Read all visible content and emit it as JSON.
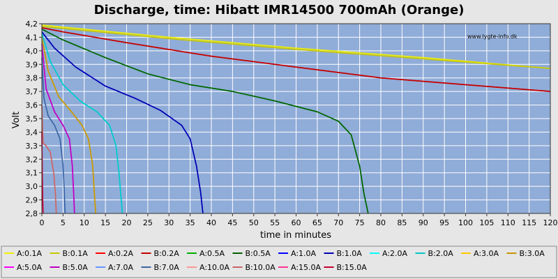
{
  "chart_data": {
    "type": "line",
    "title": "Discharge, time: Hibatt IMR14500 700mAh (Orange)",
    "watermark": "www.lygte-info.dk",
    "xlabel": "time in minutes",
    "ylabel": "Volt",
    "xlim": [
      0,
      120
    ],
    "ylim": [
      2.8,
      4.2
    ],
    "xticks": [
      "0",
      "5",
      "10",
      "15",
      "20",
      "25",
      "30",
      "35",
      "40",
      "45",
      "50",
      "55",
      "60",
      "65",
      "70",
      "75",
      "80",
      "85",
      "90",
      "95",
      "100",
      "105",
      "110",
      "115",
      "120"
    ],
    "yticks": [
      "2,8",
      "2,9",
      "3,0",
      "3,1",
      "3,2",
      "3,3",
      "3,4",
      "3,5",
      "3,6",
      "3,7",
      "3,8",
      "3,9",
      "4,0",
      "4,1",
      "4,2"
    ],
    "grid": true,
    "legend_position": "bottom",
    "plot_background": "#90acd8",
    "series": [
      {
        "name": "A:0.1A",
        "color": "#f0f000",
        "x": [
          0,
          10,
          30,
          60,
          90,
          120
        ],
        "y": [
          4.19,
          4.16,
          4.1,
          4.02,
          3.95,
          3.87
        ]
      },
      {
        "name": "B:0.1A",
        "color": "#c8c800",
        "x": [
          0,
          10,
          30,
          60,
          90,
          120
        ],
        "y": [
          4.18,
          4.15,
          4.09,
          4.01,
          3.94,
          3.87
        ]
      },
      {
        "name": "A:0.2A",
        "color": "#ff0000",
        "x": [
          0,
          5,
          20,
          40,
          60,
          80,
          100,
          120
        ],
        "y": [
          4.17,
          4.14,
          4.06,
          3.96,
          3.88,
          3.8,
          3.75,
          3.7
        ]
      },
      {
        "name": "B:0.2A",
        "color": "#c00000",
        "x": [
          0,
          5,
          20,
          40,
          60,
          80,
          100,
          120
        ],
        "y": [
          4.17,
          4.14,
          4.06,
          3.96,
          3.88,
          3.8,
          3.75,
          3.7
        ]
      },
      {
        "name": "A:0.5A",
        "color": "#00b000",
        "x": [
          0,
          5,
          15,
          25,
          35,
          45,
          55,
          65,
          70,
          73,
          75,
          76,
          77
        ],
        "y": [
          4.16,
          4.08,
          3.95,
          3.83,
          3.75,
          3.7,
          3.63,
          3.55,
          3.48,
          3.38,
          3.15,
          2.95,
          2.8
        ]
      },
      {
        "name": "B:0.5A",
        "color": "#006000",
        "x": [
          0,
          5,
          15,
          25,
          35,
          45,
          55,
          65,
          70,
          73,
          75,
          76,
          77
        ],
        "y": [
          4.16,
          4.08,
          3.95,
          3.83,
          3.75,
          3.7,
          3.63,
          3.55,
          3.48,
          3.38,
          3.15,
          2.95,
          2.8
        ]
      },
      {
        "name": "A:1.0A",
        "color": "#0000ff",
        "x": [
          0,
          3,
          8,
          15,
          22,
          28,
          33,
          35,
          36.5,
          37.5,
          38
        ],
        "y": [
          4.14,
          4.02,
          3.88,
          3.74,
          3.65,
          3.56,
          3.45,
          3.35,
          3.15,
          2.95,
          2.8
        ]
      },
      {
        "name": "B:1.0A",
        "color": "#0000b0",
        "x": [
          0,
          3,
          8,
          15,
          22,
          28,
          33,
          35,
          36.5,
          37.5,
          38
        ],
        "y": [
          4.14,
          4.02,
          3.88,
          3.74,
          3.65,
          3.56,
          3.45,
          3.35,
          3.15,
          2.95,
          2.8
        ]
      },
      {
        "name": "A:2.0A",
        "color": "#00ffff",
        "x": [
          0,
          2,
          5,
          9,
          13,
          16,
          17.5,
          18.2,
          18.6,
          19
        ],
        "y": [
          4.13,
          3.92,
          3.75,
          3.63,
          3.55,
          3.45,
          3.3,
          3.1,
          2.95,
          2.8
        ]
      },
      {
        "name": "B:2.0A",
        "color": "#00c8c8",
        "x": [
          0,
          2,
          5,
          9,
          13,
          16,
          17.5,
          18.2,
          18.6,
          19
        ],
        "y": [
          4.13,
          3.92,
          3.75,
          3.63,
          3.55,
          3.45,
          3.3,
          3.1,
          2.95,
          2.8
        ]
      },
      {
        "name": "A:3.0A",
        "color": "#ffc800",
        "x": [
          0,
          1.5,
          4,
          7,
          9.5,
          11,
          12,
          12.4,
          12.7
        ],
        "y": [
          4.1,
          3.85,
          3.66,
          3.55,
          3.45,
          3.35,
          3.15,
          2.95,
          2.8
        ]
      },
      {
        "name": "B:3.0A",
        "color": "#c89600",
        "x": [
          0,
          1.5,
          4,
          7,
          9.5,
          11,
          12,
          12.4,
          12.7
        ],
        "y": [
          4.1,
          3.85,
          3.66,
          3.55,
          3.45,
          3.35,
          3.15,
          2.95,
          2.8
        ]
      },
      {
        "name": "A:5.0A",
        "color": "#ff00ff",
        "x": [
          0,
          1,
          3,
          5,
          6.5,
          7.2,
          7.5,
          7.7
        ],
        "y": [
          4.05,
          3.72,
          3.55,
          3.45,
          3.35,
          3.15,
          2.95,
          2.8
        ]
      },
      {
        "name": "B:5.0A",
        "color": "#c000c0",
        "x": [
          0,
          1,
          3,
          5,
          6.5,
          7.2,
          7.5,
          7.7
        ],
        "y": [
          4.05,
          3.72,
          3.55,
          3.45,
          3.35,
          3.15,
          2.95,
          2.8
        ]
      },
      {
        "name": "A:7.0A",
        "color": "#6496ff",
        "x": [
          0,
          0.5,
          1.5,
          3,
          4.3,
          5,
          5.3,
          5.5
        ],
        "y": [
          3.95,
          3.65,
          3.52,
          3.45,
          3.35,
          3.15,
          2.95,
          2.8
        ]
      },
      {
        "name": "B:7.0A",
        "color": "#3c64a0",
        "x": [
          0,
          0.5,
          1.5,
          3,
          4.3,
          5,
          5.3,
          5.5
        ],
        "y": [
          3.95,
          3.65,
          3.52,
          3.45,
          3.35,
          3.15,
          2.95,
          2.8
        ]
      },
      {
        "name": "A:10.0A",
        "color": "#ff9696",
        "x": [
          0,
          0.3,
          1,
          2,
          2.8,
          3.2,
          3.4
        ],
        "y": [
          3.6,
          3.32,
          3.3,
          3.25,
          3.1,
          2.95,
          2.8
        ]
      },
      {
        "name": "B:10.0A",
        "color": "#c86464",
        "x": [
          0,
          0.3,
          1,
          2,
          2.8,
          3.2,
          3.4
        ],
        "y": [
          3.6,
          3.32,
          3.3,
          3.25,
          3.1,
          2.95,
          2.8
        ]
      },
      {
        "name": "A:15.0A",
        "color": "#ff3296",
        "x": [
          0,
          0.1,
          0.2,
          0.3
        ],
        "y": [
          3.4,
          3.1,
          2.9,
          2.8
        ]
      },
      {
        "name": "B:15.0A",
        "color": "#c80032",
        "x": [
          0,
          0.1,
          0.2,
          0.3
        ],
        "y": [
          3.4,
          3.1,
          2.9,
          2.8
        ]
      }
    ]
  }
}
